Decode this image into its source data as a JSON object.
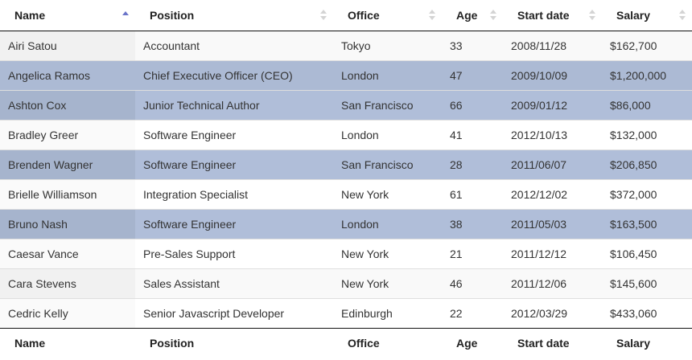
{
  "columns": [
    "Name",
    "Position",
    "Office",
    "Age",
    "Start date",
    "Salary"
  ],
  "sort": {
    "column": "Name",
    "direction": "ascending"
  },
  "colors": {
    "selected_row": "#b0bed9",
    "sort_arrow_active": "#6a74c9",
    "sort_arrow_inactive": "#d4d4d4"
  },
  "rows": [
    {
      "name": "Airi Satou",
      "position": "Accountant",
      "office": "Tokyo",
      "age": "33",
      "start": "2008/11/28",
      "salary": "$162,700",
      "selected": false
    },
    {
      "name": "Angelica Ramos",
      "position": "Chief Executive Officer (CEO)",
      "office": "London",
      "age": "47",
      "start": "2009/10/09",
      "salary": "$1,200,000",
      "selected": true
    },
    {
      "name": "Ashton Cox",
      "position": "Junior Technical Author",
      "office": "San Francisco",
      "age": "66",
      "start": "2009/01/12",
      "salary": "$86,000",
      "selected": true
    },
    {
      "name": "Bradley Greer",
      "position": "Software Engineer",
      "office": "London",
      "age": "41",
      "start": "2012/10/13",
      "salary": "$132,000",
      "selected": false
    },
    {
      "name": "Brenden Wagner",
      "position": "Software Engineer",
      "office": "San Francisco",
      "age": "28",
      "start": "2011/06/07",
      "salary": "$206,850",
      "selected": true
    },
    {
      "name": "Brielle Williamson",
      "position": "Integration Specialist",
      "office": "New York",
      "age": "61",
      "start": "2012/12/02",
      "salary": "$372,000",
      "selected": false
    },
    {
      "name": "Bruno Nash",
      "position": "Software Engineer",
      "office": "London",
      "age": "38",
      "start": "2011/05/03",
      "salary": "$163,500",
      "selected": true
    },
    {
      "name": "Caesar Vance",
      "position": "Pre-Sales Support",
      "office": "New York",
      "age": "21",
      "start": "2011/12/12",
      "salary": "$106,450",
      "selected": false
    },
    {
      "name": "Cara Stevens",
      "position": "Sales Assistant",
      "office": "New York",
      "age": "46",
      "start": "2011/12/06",
      "salary": "$145,600",
      "selected": false
    },
    {
      "name": "Cedric Kelly",
      "position": "Senior Javascript Developer",
      "office": "Edinburgh",
      "age": "22",
      "start": "2012/03/29",
      "salary": "$433,060",
      "selected": false
    }
  ]
}
